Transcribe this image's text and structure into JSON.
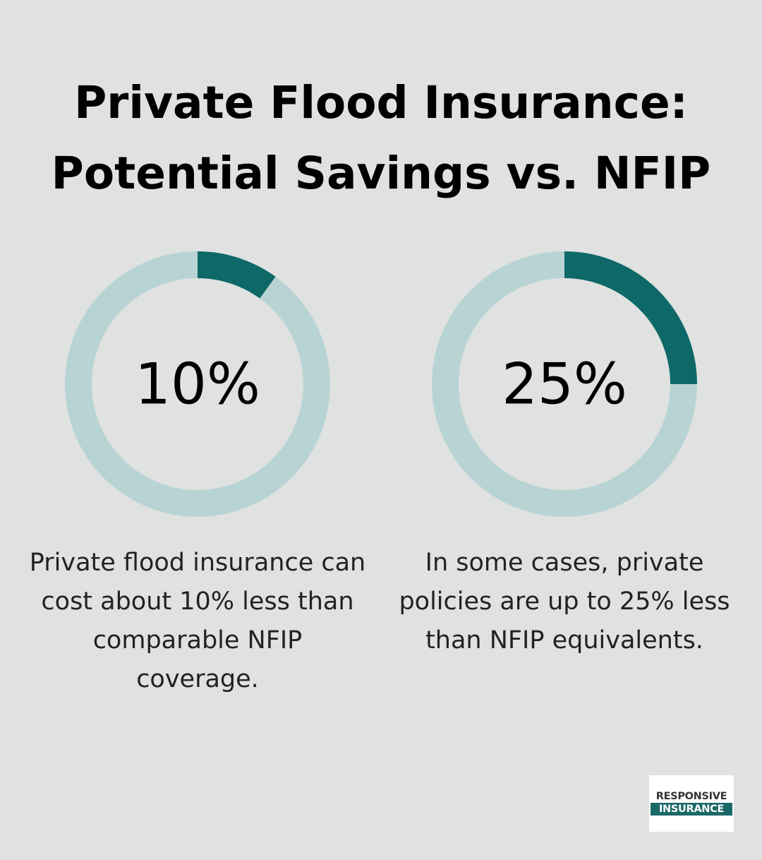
{
  "title": "Private Flood Insurance: Potential Savings vs. NFIP",
  "chart_data": [
    {
      "type": "donut",
      "values": [
        10
      ],
      "value_labels": [
        "10%"
      ],
      "ylim": [
        0,
        100
      ],
      "color": "#0f6868",
      "track_color": "#b8d3d3",
      "description": "Private flood insurance can cost about 10% less than comparable NFIP coverage."
    },
    {
      "type": "donut",
      "values": [
        25
      ],
      "value_labels": [
        "25%"
      ],
      "ylim": [
        0,
        100
      ],
      "color": "#0f6868",
      "track_color": "#b8d3d3",
      "description": "In some cases, private policies are up to 25% less than NFIP equivalents."
    }
  ],
  "logo": {
    "top": "RESPONSIVE",
    "bottom": "INSURANCE"
  }
}
